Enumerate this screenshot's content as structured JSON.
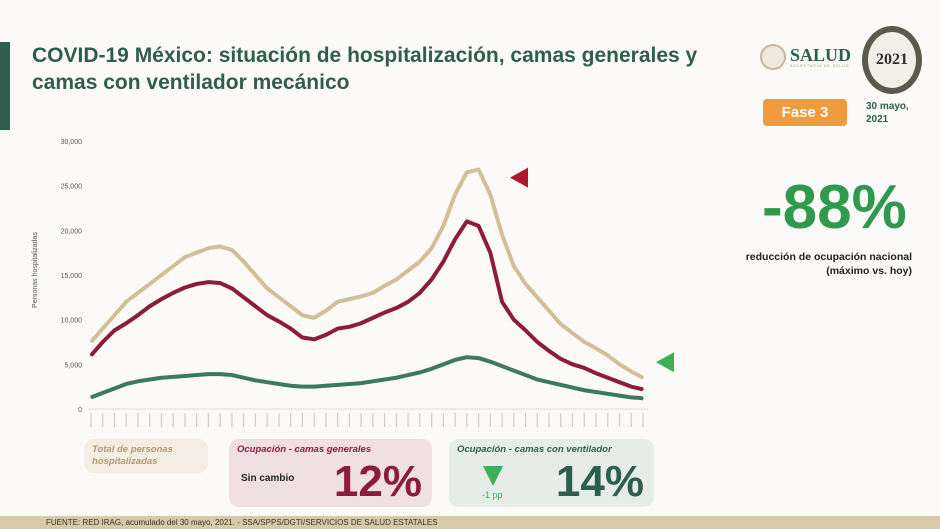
{
  "header": {
    "title": "COVID-19 México: situación de hospitalización, camas generales y camas con ventilador mecánico",
    "salud_logo": "SALUD",
    "salud_sub": "SECRETARÍA DE SALUD",
    "logo_2021": "México 2021 Año de la Independencia",
    "phase": "Fase 3",
    "date": "30 mayo, 2021"
  },
  "summary": {
    "value": "-88%",
    "caption": "reducción de ocupación nacional (máximo vs. hoy)",
    "color": "#2f9a4d"
  },
  "cards": {
    "total": {
      "title": "Total de personas hospitalizadas"
    },
    "general": {
      "title": "Ocupación - camas generales",
      "change": "Sin cambio",
      "value": "12%"
    },
    "ventilator": {
      "title": "Ocupación - camas con ventilador",
      "change": "-1 pp",
      "value": "14%",
      "indicator": "down-triangle"
    }
  },
  "footer": "FUENTE: RED IRAG, acumulado del 30 mayo, 2021. - SSA/SPPS/DGTI/SERVICIOS DE SALUD ESTATALES",
  "chart_data": {
    "type": "line",
    "ylabel": "Personas hospitalizadas",
    "ylim": [
      0,
      30000
    ],
    "yticks": [
      "0",
      "5,000",
      "10,000",
      "15,000",
      "20,000",
      "25,000",
      "30,000"
    ],
    "grid": false,
    "series": [
      {
        "key": "total",
        "color": "#d2bf96",
        "values": [
          7500,
          9000,
          10500,
          12000,
          13000,
          14000,
          15000,
          16000,
          17000,
          17500,
          18000,
          18200,
          17800,
          16500,
          15000,
          13500,
          12500,
          11500,
          10500,
          10200,
          11000,
          12000,
          12300,
          12600,
          13000,
          13800,
          14500,
          15500,
          16500,
          18000,
          20500,
          24000,
          26500,
          26800,
          24000,
          19500,
          16000,
          14000,
          12500,
          11000,
          9500,
          8500,
          7500,
          6800,
          6000,
          5000,
          4200,
          3500
        ]
      },
      {
        "key": "general",
        "color": "#8d1b3d",
        "values": [
          6000,
          7500,
          8800,
          9600,
          10500,
          11500,
          12300,
          13000,
          13600,
          14000,
          14200,
          14100,
          13500,
          12500,
          11500,
          10500,
          9800,
          9000,
          8000,
          7800,
          8300,
          9000,
          9200,
          9600,
          10200,
          10800,
          11300,
          12000,
          13000,
          14500,
          16500,
          19000,
          21000,
          20500,
          17500,
          12000,
          10000,
          8800,
          7500,
          6500,
          5600,
          5000,
          4600,
          4000,
          3500,
          3000,
          2500,
          2200
        ]
      },
      {
        "key": "ventilator",
        "color": "#3b7a5f",
        "values": [
          1300,
          1800,
          2300,
          2800,
          3100,
          3300,
          3500,
          3600,
          3700,
          3800,
          3900,
          3900,
          3800,
          3500,
          3200,
          3000,
          2800,
          2600,
          2500,
          2500,
          2600,
          2700,
          2800,
          2900,
          3100,
          3300,
          3500,
          3800,
          4100,
          4500,
          5000,
          5500,
          5800,
          5700,
          5300,
          4800,
          4300,
          3800,
          3300,
          3000,
          2700,
          2400,
          2100,
          1900,
          1700,
          1500,
          1300,
          1200
        ]
      }
    ],
    "markers": [
      {
        "series": "general",
        "icon": "left-triangle",
        "color": "#b0172a"
      },
      {
        "series": "ventilator",
        "icon": "left-triangle",
        "color": "#3fae59"
      }
    ]
  }
}
